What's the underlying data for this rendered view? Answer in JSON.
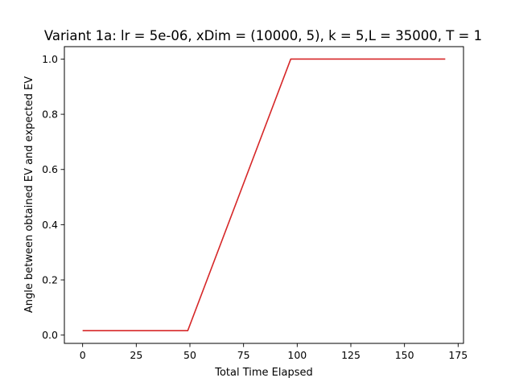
{
  "chart_data": {
    "type": "line",
    "title": "Variant 1a: lr = 5e-06, xDim = (10000, 5), k = 5,L = 35000, T = 1",
    "xlabel": "Total Time Elapsed",
    "ylabel": "Angle between obtained EV and expected EV",
    "xlim": [
      -8.5,
      177.5
    ],
    "ylim": [
      -0.03,
      1.045
    ],
    "x_ticks": [
      0,
      25,
      50,
      75,
      100,
      125,
      150,
      175
    ],
    "x_tick_labels": [
      "0",
      "25",
      "50",
      "75",
      "100",
      "125",
      "150",
      "175"
    ],
    "y_ticks": [
      0.0,
      0.2,
      0.4,
      0.6,
      0.8,
      1.0
    ],
    "y_tick_labels": [
      "0.0",
      "0.2",
      "0.4",
      "0.6",
      "0.8",
      "1.0"
    ],
    "grid": false,
    "series": [
      {
        "color": "#d62728",
        "x": [
          0,
          49,
          97,
          169
        ],
        "y": [
          0.016,
          0.016,
          1.0,
          1.0
        ]
      }
    ]
  }
}
